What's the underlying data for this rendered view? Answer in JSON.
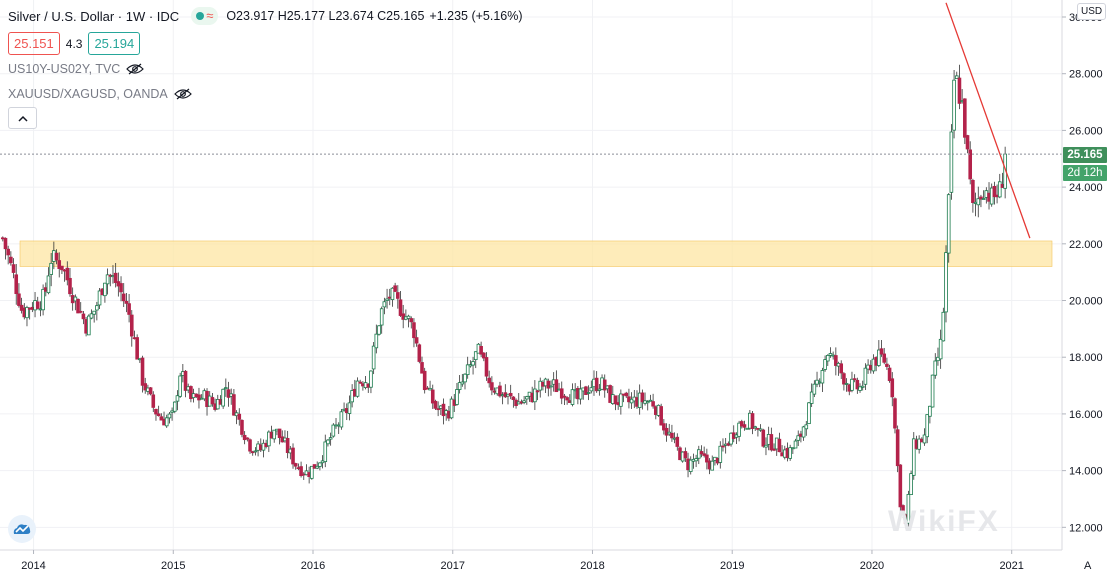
{
  "header": {
    "title": "Silver / U.S. Dollar · 1W · IDC",
    "ohlc_text": "O23.917 H25.177 L23.674 C25.165",
    "change_text": "+1.235 (+5.16%)",
    "sell_price": "25.151",
    "spread": "4.3",
    "buy_price": "25.194"
  },
  "indicators": [
    {
      "label": "US10Y-US02Y, TVC",
      "icon": "eye-hidden-icon"
    },
    {
      "label": "XAUUSD/XAGUSD, OANDA",
      "icon": "eye-hidden-icon"
    }
  ],
  "price_axis": {
    "currency_button": "USD",
    "ticks": [
      "30.000",
      "28.000",
      "26.000",
      "24.000",
      "22.000",
      "20.000",
      "18.000",
      "16.000",
      "14.000",
      "12.000"
    ],
    "last_price_label": "25.165",
    "countdown_label": "2d 12h",
    "mode_button": "A"
  },
  "time_axis": {
    "ticks": [
      "2014",
      "2015",
      "2016",
      "2017",
      "2018",
      "2019",
      "2020",
      "2021"
    ]
  },
  "watermark": "WikiFX",
  "colors": {
    "up": "#26a69a",
    "down": "#c2185b",
    "zone": "#fde6a3",
    "trend": "#e53935"
  },
  "chart_data": {
    "type": "candlestick",
    "symbol": "Silver / U.S. Dollar",
    "interval": "1W",
    "ylim": [
      11.2,
      30.6
    ],
    "x_range": [
      2013.76,
      2021.36
    ],
    "grid": true,
    "last_close": 25.165,
    "support_zone": [
      21.2,
      22.1
    ],
    "trendline": {
      "from": {
        "t": 2020.53,
        "price": 30.5
      },
      "to": {
        "t": 2021.13,
        "price": 22.2
      }
    },
    "price_path": [
      [
        2013.78,
        22.2
      ],
      [
        2013.85,
        21.0
      ],
      [
        2013.92,
        19.6
      ],
      [
        2014.0,
        19.9
      ],
      [
        2014.08,
        20.1
      ],
      [
        2014.12,
        21.5
      ],
      [
        2014.2,
        21.3
      ],
      [
        2014.3,
        20.0
      ],
      [
        2014.38,
        19.1
      ],
      [
        2014.45,
        19.8
      ],
      [
        2014.52,
        21.0
      ],
      [
        2014.6,
        20.6
      ],
      [
        2014.68,
        19.6
      ],
      [
        2014.78,
        17.2
      ],
      [
        2014.86,
        16.2
      ],
      [
        2014.92,
        15.8
      ],
      [
        2015.0,
        15.9
      ],
      [
        2015.05,
        17.5
      ],
      [
        2015.12,
        16.5
      ],
      [
        2015.22,
        16.6
      ],
      [
        2015.3,
        16.3
      ],
      [
        2015.38,
        17.0
      ],
      [
        2015.45,
        16.0
      ],
      [
        2015.55,
        14.9
      ],
      [
        2015.62,
        14.7
      ],
      [
        2015.72,
        15.5
      ],
      [
        2015.8,
        14.9
      ],
      [
        2015.88,
        14.2
      ],
      [
        2015.96,
        13.9
      ],
      [
        2016.05,
        14.4
      ],
      [
        2016.15,
        15.4
      ],
      [
        2016.25,
        16.2
      ],
      [
        2016.32,
        17.2
      ],
      [
        2016.4,
        17.2
      ],
      [
        2016.48,
        19.5
      ],
      [
        2016.55,
        20.2
      ],
      [
        2016.62,
        19.8
      ],
      [
        2016.72,
        19.0
      ],
      [
        2016.8,
        17.0
      ],
      [
        2016.88,
        16.2
      ],
      [
        2016.96,
        16.0
      ],
      [
        2017.08,
        17.2
      ],
      [
        2017.18,
        18.2
      ],
      [
        2017.28,
        17.0
      ],
      [
        2017.38,
        16.6
      ],
      [
        2017.48,
        16.4
      ],
      [
        2017.56,
        16.6
      ],
      [
        2017.64,
        17.0
      ],
      [
        2017.72,
        17.0
      ],
      [
        2017.8,
        16.8
      ],
      [
        2017.9,
        16.5
      ],
      [
        2017.98,
        17.0
      ],
      [
        2018.06,
        17.1
      ],
      [
        2018.14,
        16.5
      ],
      [
        2018.24,
        16.4
      ],
      [
        2018.34,
        16.5
      ],
      [
        2018.44,
        16.4
      ],
      [
        2018.52,
        15.5
      ],
      [
        2018.6,
        14.8
      ],
      [
        2018.68,
        14.2
      ],
      [
        2018.76,
        14.5
      ],
      [
        2018.86,
        14.2
      ],
      [
        2018.94,
        14.8
      ],
      [
        2019.04,
        15.6
      ],
      [
        2019.12,
        15.8
      ],
      [
        2019.22,
        15.1
      ],
      [
        2019.32,
        14.9
      ],
      [
        2019.4,
        14.6
      ],
      [
        2019.48,
        15.1
      ],
      [
        2019.55,
        16.2
      ],
      [
        2019.62,
        17.3
      ],
      [
        2019.68,
        18.2
      ],
      [
        2019.76,
        17.6
      ],
      [
        2019.84,
        17.0
      ],
      [
        2019.92,
        16.9
      ],
      [
        2020.0,
        17.9
      ],
      [
        2020.08,
        18.0
      ],
      [
        2020.14,
        17.2
      ],
      [
        2020.2,
        13.0
      ],
      [
        2020.24,
        12.0
      ],
      [
        2020.3,
        14.9
      ],
      [
        2020.38,
        15.2
      ],
      [
        2020.44,
        17.3
      ],
      [
        2020.5,
        18.6
      ],
      [
        2020.55,
        23.5
      ],
      [
        2020.59,
        28.0
      ],
      [
        2020.65,
        26.8
      ],
      [
        2020.72,
        23.2
      ],
      [
        2020.8,
        24.0
      ],
      [
        2020.86,
        23.6
      ],
      [
        2020.92,
        23.9
      ],
      [
        2020.96,
        25.165
      ]
    ]
  }
}
